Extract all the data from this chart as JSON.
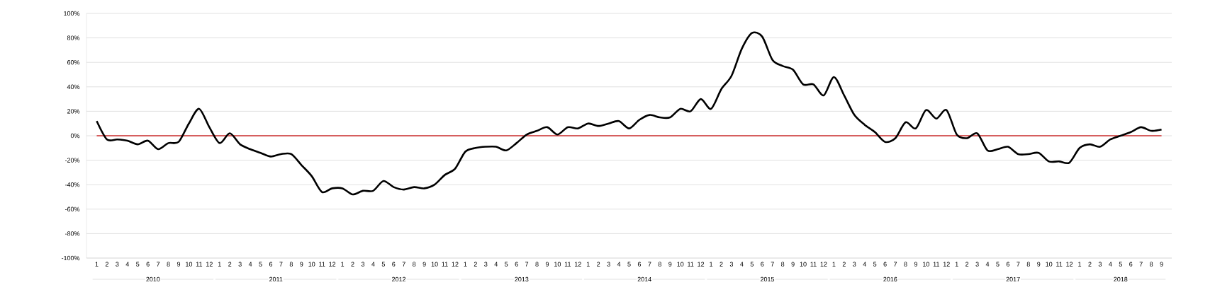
{
  "chart_data": {
    "type": "line",
    "categories": [
      "1",
      "2",
      "3",
      "4",
      "5",
      "6",
      "7",
      "8",
      "9",
      "10",
      "11",
      "12",
      "1",
      "2",
      "3",
      "4",
      "5",
      "6",
      "7",
      "8",
      "9",
      "10",
      "11",
      "12",
      "1",
      "2",
      "3",
      "4",
      "5",
      "6",
      "7",
      "8",
      "9",
      "10",
      "11",
      "12",
      "1",
      "2",
      "3",
      "4",
      "5",
      "6",
      "7",
      "8",
      "9",
      "10",
      "11",
      "12",
      "1",
      "2",
      "3",
      "4",
      "5",
      "6",
      "7",
      "8",
      "9",
      "10",
      "11",
      "12",
      "1",
      "2",
      "3",
      "4",
      "5",
      "6",
      "7",
      "8",
      "9",
      "10",
      "11",
      "12",
      "1",
      "2",
      "3",
      "4",
      "5",
      "6",
      "7",
      "8",
      "9",
      "10",
      "11",
      "12",
      "1",
      "2",
      "3",
      "4",
      "5",
      "6",
      "7",
      "8",
      "9",
      "10",
      "11",
      "12",
      "1",
      "2",
      "3",
      "4",
      "5",
      "6",
      "7",
      "8",
      "9"
    ],
    "series": [
      {
        "color": "#000000",
        "values": [
          12,
          -3,
          -3,
          -4,
          -7,
          -4,
          -11,
          -6,
          -5,
          10,
          22,
          7,
          -6,
          2,
          -7,
          -11,
          -14,
          -17,
          -15,
          -15,
          -24,
          -33,
          -46,
          -43,
          -43,
          -48,
          -45,
          -45,
          -37,
          -42,
          -44,
          -42,
          -43,
          -40,
          -32,
          -27,
          -13,
          -10,
          -9,
          -9,
          -12,
          -6,
          1,
          4,
          7,
          1,
          7,
          6,
          10,
          8,
          10,
          12,
          6,
          13,
          17,
          15,
          15,
          22,
          20,
          30,
          22,
          38,
          49,
          71,
          84,
          81,
          62,
          57,
          54,
          42,
          42,
          33,
          48,
          33,
          17,
          9,
          3,
          -5,
          -2,
          11,
          6,
          21,
          14,
          21,
          1,
          -2,
          2,
          -12,
          -11,
          -9,
          -15,
          -15,
          -14,
          -21,
          -21,
          -22,
          -10,
          -7,
          -9,
          -3,
          0,
          3,
          7,
          4,
          5
        ]
      }
    ],
    "ylim": [
      -100,
      100
    ],
    "yticks": [
      {
        "value": -100,
        "label": "-100%"
      },
      {
        "value": -80,
        "label": "-80%"
      },
      {
        "value": -60,
        "label": "-60%"
      },
      {
        "value": -40,
        "label": "-40%"
      },
      {
        "value": -20,
        "label": "-20%"
      },
      {
        "value": 0,
        "label": "0%"
      },
      {
        "value": 20,
        "label": "20%"
      },
      {
        "value": 40,
        "label": "40%"
      },
      {
        "value": 60,
        "label": "60%"
      },
      {
        "value": 80,
        "label": "80%"
      },
      {
        "value": 100,
        "label": "100%"
      }
    ],
    "grid": "y",
    "ref_lines": [
      {
        "axis": "y",
        "value": 0,
        "color": "#d65f5f"
      }
    ],
    "annotations": [
      "2010",
      "2011",
      "2012",
      "2013",
      "2014",
      "2015",
      "2016",
      "2017",
      "2018"
    ]
  }
}
